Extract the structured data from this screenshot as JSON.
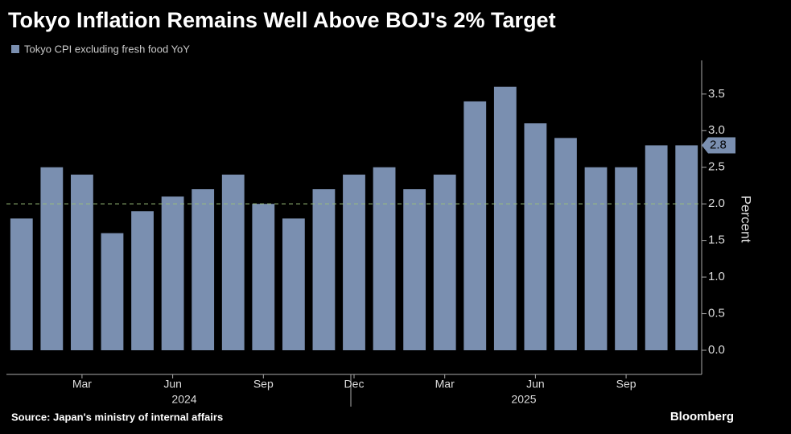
{
  "chart_data": {
    "type": "bar",
    "title": "Tokyo Inflation Remains Well Above BOJ's 2% Target",
    "categories": [
      null,
      null,
      "Mar",
      null,
      null,
      "Jun",
      null,
      null,
      "Sep",
      null,
      null,
      "Dec",
      null,
      null,
      "Mar",
      null,
      null,
      "Jun",
      null,
      null,
      "Sep",
      null,
      null
    ],
    "year_labels": [
      "2024",
      "2025"
    ],
    "series": [
      {
        "name": "Tokyo CPI excluding fresh food YoY",
        "color": "#7a8fb0",
        "values": [
          1.8,
          2.5,
          2.4,
          1.6,
          1.9,
          2.1,
          2.2,
          2.4,
          2.0,
          1.8,
          2.2,
          2.4,
          2.5,
          2.2,
          2.4,
          3.4,
          3.6,
          3.1,
          2.9,
          2.5,
          2.5,
          2.8,
          2.8
        ],
        "value_labels": [
          null,
          null,
          null,
          null,
          null,
          null,
          null,
          null,
          null,
          null,
          null,
          null,
          null,
          null,
          null,
          null,
          null,
          null,
          null,
          null,
          null,
          null,
          "2.8"
        ]
      }
    ],
    "ylim": [
      -0.33,
      3.96
    ],
    "yticks": [
      {
        "value": 0,
        "label": "0.0"
      },
      {
        "value": 0.5,
        "label": "0.5"
      },
      {
        "value": 1,
        "label": "1.0"
      },
      {
        "value": 1.5,
        "label": "1.5"
      },
      {
        "value": 2,
        "label": "2.0"
      },
      {
        "value": 2.5,
        "label": "2.5"
      },
      {
        "value": 3,
        "label": "3.0"
      },
      {
        "value": 3.5,
        "label": "3.5"
      }
    ],
    "y_axis_label": "Percent",
    "target_line": 2,
    "source": "Source: Japan's ministry of internal affairs",
    "brand": "Bloomberg"
  }
}
